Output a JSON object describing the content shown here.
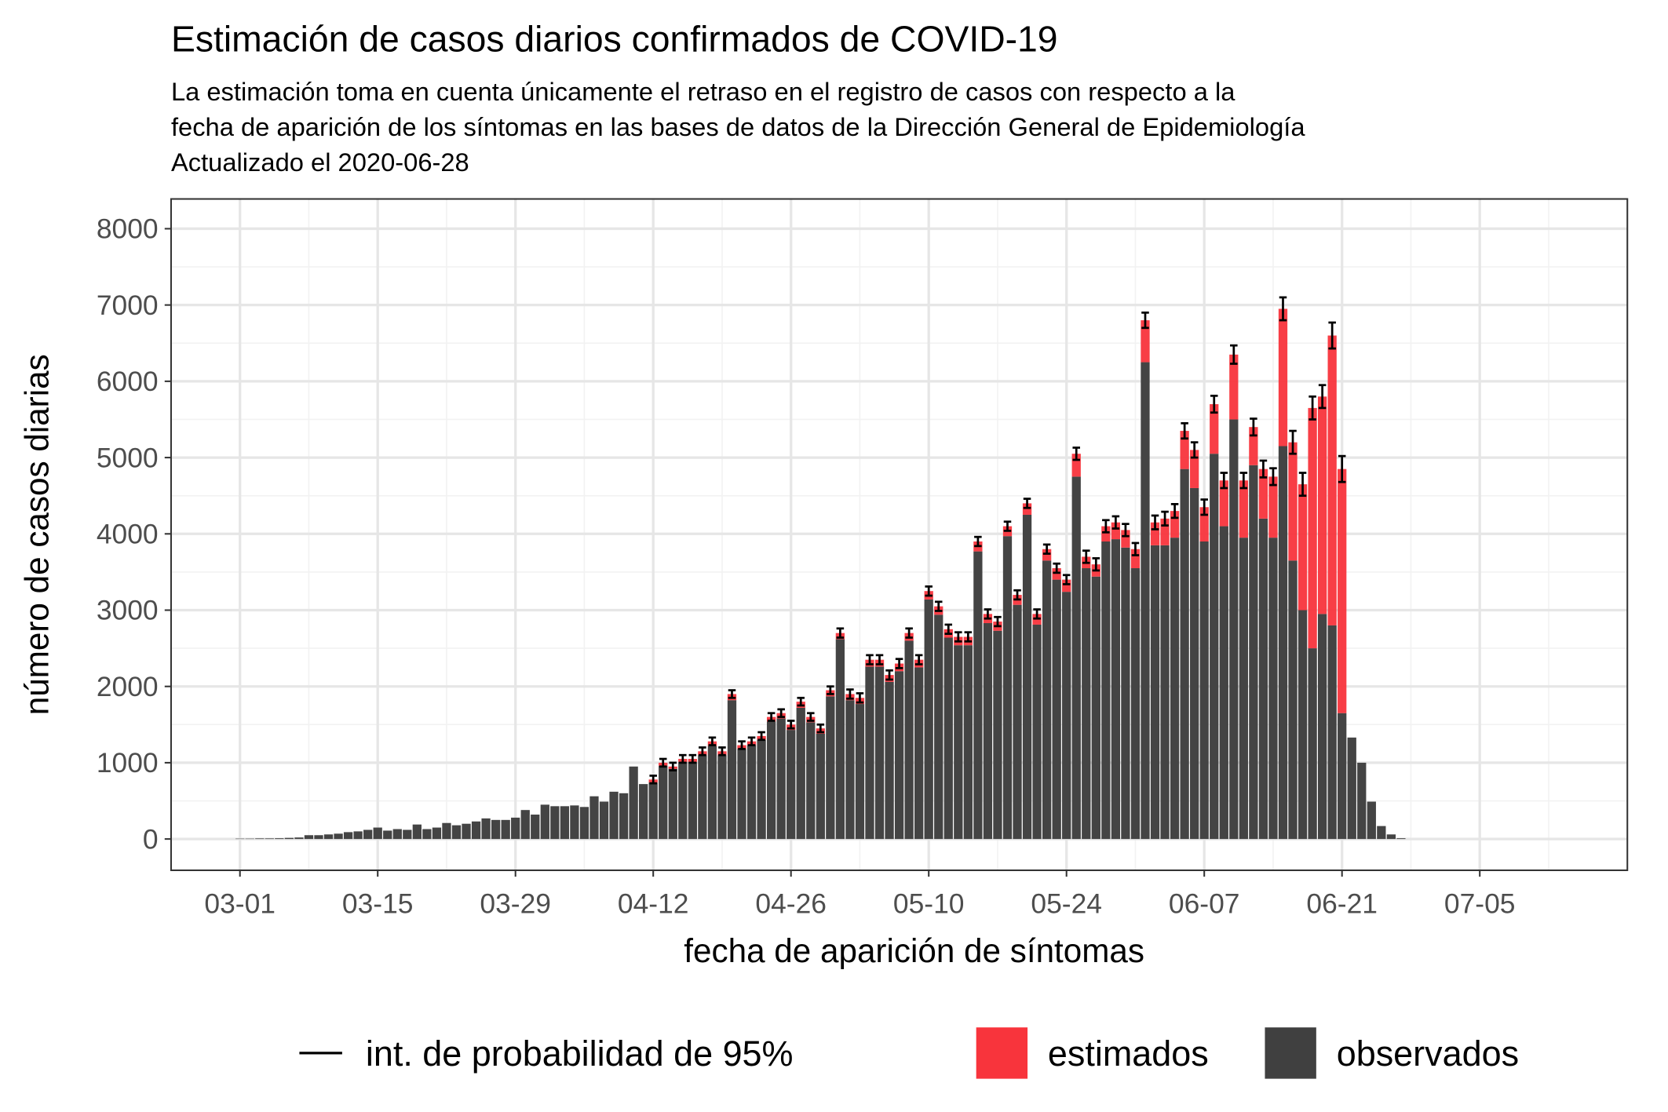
{
  "chart_data": {
    "type": "stacked-bar-interval",
    "title": "Estimación de casos diarios confirmados de COVID-19",
    "subtitle": [
      "La estimación toma en cuenta únicamente el retraso en el registro de casos con respecto a la",
      "fecha de aparición de los síntomas en las bases de datos de la Dirección General de Epidemiología",
      "Actualizado el 2020-06-28"
    ],
    "x_label": "fecha de aparición de síntomas",
    "y_label": "número de casos diarias",
    "x": [
      "03-01",
      "03-02",
      "03-03",
      "03-04",
      "03-05",
      "03-06",
      "03-07",
      "03-08",
      "03-09",
      "03-10",
      "03-11",
      "03-12",
      "03-13",
      "03-14",
      "03-15",
      "03-16",
      "03-17",
      "03-18",
      "03-19",
      "03-20",
      "03-21",
      "03-22",
      "03-23",
      "03-24",
      "03-25",
      "03-26",
      "03-27",
      "03-28",
      "03-29",
      "03-30",
      "03-31",
      "04-01",
      "04-02",
      "04-03",
      "04-04",
      "04-05",
      "04-06",
      "04-07",
      "04-08",
      "04-09",
      "04-10",
      "04-11",
      "04-12",
      "04-13",
      "04-14",
      "04-15",
      "04-16",
      "04-17",
      "04-18",
      "04-19",
      "04-20",
      "04-21",
      "04-22",
      "04-23",
      "04-24",
      "04-25",
      "04-26",
      "04-27",
      "04-28",
      "04-29",
      "04-30",
      "05-01",
      "05-02",
      "05-03",
      "05-04",
      "05-05",
      "05-06",
      "05-07",
      "05-08",
      "05-09",
      "05-10",
      "05-11",
      "05-12",
      "05-13",
      "05-14",
      "05-15",
      "05-16",
      "05-17",
      "05-18",
      "05-19",
      "05-20",
      "05-21",
      "05-22",
      "05-23",
      "05-24",
      "05-25",
      "05-26",
      "05-27",
      "05-28",
      "05-29",
      "05-30",
      "05-31",
      "06-01",
      "06-02",
      "06-03",
      "06-04",
      "06-05",
      "06-06",
      "06-07",
      "06-08",
      "06-09",
      "06-10",
      "06-11",
      "06-12",
      "06-13",
      "06-14",
      "06-15",
      "06-16",
      "06-17",
      "06-18",
      "06-19",
      "06-20",
      "06-21",
      "06-22",
      "06-23",
      "06-24",
      "06-25",
      "06-26",
      "06-27"
    ],
    "series": [
      {
        "name": "observados",
        "color": "#404040",
        "values": [
          5,
          5,
          8,
          8,
          10,
          15,
          20,
          50,
          50,
          60,
          70,
          90,
          100,
          120,
          150,
          110,
          130,
          120,
          190,
          130,
          150,
          210,
          180,
          200,
          230,
          270,
          250,
          250,
          280,
          380,
          320,
          450,
          430,
          430,
          440,
          420,
          560,
          490,
          620,
          600,
          950,
          720,
          740,
          960,
          920,
          1010,
          1010,
          1100,
          1220,
          1100,
          1820,
          1180,
          1230,
          1300,
          1540,
          1580,
          1430,
          1720,
          1530,
          1380,
          1870,
          2620,
          1820,
          1770,
          2260,
          2260,
          2060,
          2200,
          2600,
          2250,
          3140,
          2940,
          2640,
          2540,
          2540,
          3770,
          2830,
          2730,
          3970,
          3070,
          4250,
          2810,
          3650,
          3400,
          3240,
          4750,
          3550,
          3440,
          3900,
          3930,
          3820,
          3550,
          6250,
          3850,
          3850,
          3950,
          4850,
          4600,
          3900,
          5050,
          4100,
          5500,
          3950,
          4900,
          4200,
          3950,
          5150,
          3650,
          3000,
          2500,
          2950,
          2800,
          1650,
          1330,
          1000,
          490,
          170,
          60,
          10
        ]
      },
      {
        "name": "estimados",
        "color": "#f8343c",
        "values": [
          0,
          0,
          0,
          0,
          0,
          0,
          0,
          0,
          0,
          0,
          0,
          0,
          0,
          0,
          0,
          0,
          0,
          0,
          0,
          0,
          0,
          0,
          0,
          0,
          0,
          0,
          0,
          0,
          0,
          0,
          0,
          0,
          0,
          0,
          0,
          0,
          0,
          0,
          0,
          0,
          0,
          0,
          40,
          40,
          30,
          40,
          40,
          50,
          60,
          50,
          80,
          50,
          50,
          50,
          60,
          70,
          70,
          80,
          70,
          70,
          80,
          80,
          80,
          80,
          90,
          90,
          90,
          100,
          100,
          100,
          110,
          110,
          110,
          110,
          110,
          130,
          120,
          120,
          130,
          130,
          150,
          140,
          150,
          150,
          160,
          300,
          150,
          160,
          200,
          220,
          230,
          250,
          550,
          300,
          350,
          350,
          500,
          500,
          450,
          650,
          600,
          850,
          750,
          500,
          650,
          800,
          1800,
          1550,
          1650,
          3150,
          2850,
          3800,
          3200,
          0,
          0,
          0,
          0,
          0,
          0
        ]
      }
    ],
    "interval": {
      "name": "int. de probabilidad de 95%",
      "color": "#000000",
      "errors": [
        null,
        null,
        null,
        null,
        null,
        null,
        null,
        null,
        null,
        null,
        null,
        null,
        null,
        null,
        null,
        null,
        null,
        null,
        null,
        null,
        null,
        null,
        null,
        null,
        null,
        null,
        null,
        null,
        null,
        null,
        null,
        null,
        null,
        null,
        null,
        null,
        null,
        null,
        null,
        null,
        null,
        null,
        50,
        50,
        50,
        50,
        50,
        50,
        50,
        50,
        50,
        50,
        50,
        50,
        50,
        50,
        50,
        50,
        50,
        50,
        50,
        60,
        60,
        60,
        60,
        60,
        60,
        60,
        60,
        60,
        60,
        60,
        60,
        60,
        60,
        60,
        60,
        60,
        60,
        60,
        60,
        60,
        60,
        60,
        60,
        80,
        80,
        80,
        80,
        80,
        80,
        80,
        100,
        90,
        90,
        90,
        100,
        100,
        100,
        110,
        100,
        120,
        100,
        110,
        110,
        110,
        150,
        150,
        150,
        150,
        150,
        170,
        170,
        null,
        null,
        null,
        null,
        null,
        null
      ]
    },
    "xlim": [
      "02-23",
      "07-20"
    ],
    "xticks": [
      "03-01",
      "03-15",
      "03-29",
      "04-12",
      "04-26",
      "05-10",
      "05-24",
      "06-07",
      "06-21",
      "07-05"
    ],
    "ylim": [
      -410,
      8390
    ],
    "yticks": [
      0,
      1000,
      2000,
      3000,
      4000,
      5000,
      6000,
      7000,
      8000
    ],
    "grid": true,
    "legend": "bottom"
  }
}
